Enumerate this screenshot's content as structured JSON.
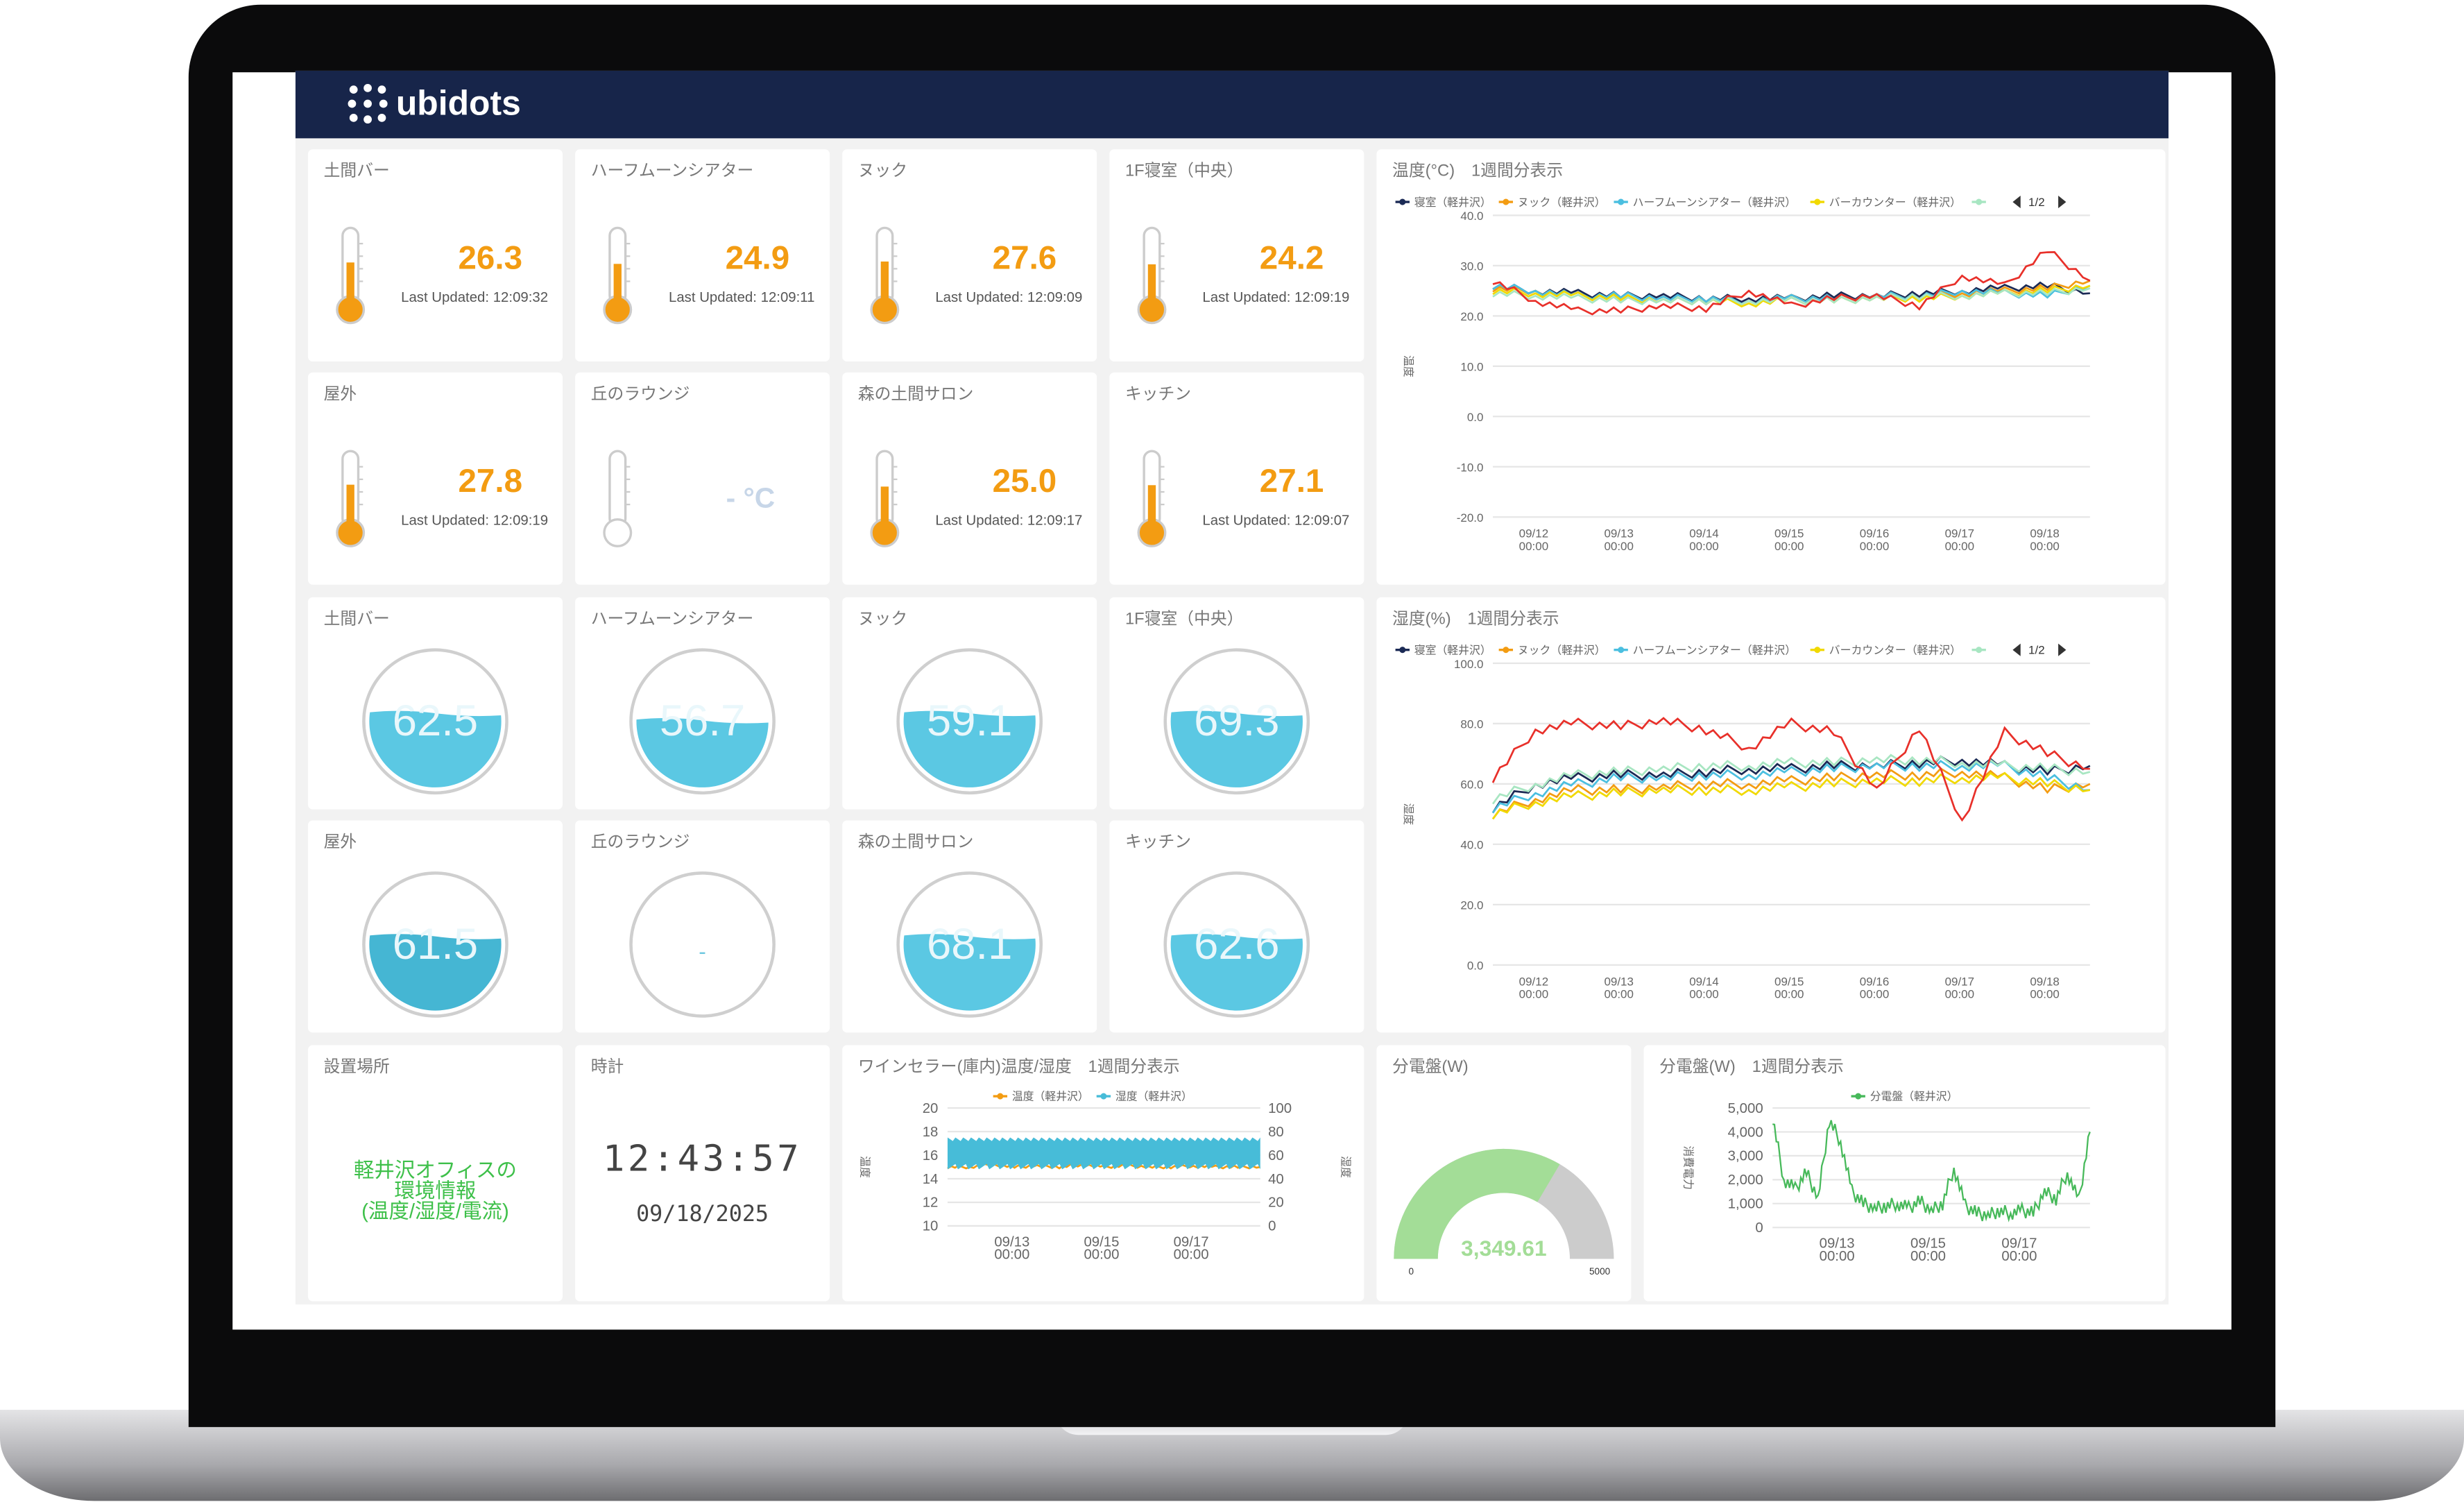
{
  "app": {
    "brand": "ubidots"
  },
  "temperature_tiles": [
    {
      "label": "土間バー",
      "value": "26.3",
      "updated": "Last Updated: 12:09:32",
      "level": 0.6
    },
    {
      "label": "ハーフムーンシアター",
      "value": "24.9",
      "updated": "Last Updated: 12:09:11",
      "level": 0.57
    },
    {
      "label": "ヌック",
      "value": "27.6",
      "updated": "Last Updated: 12:09:09",
      "level": 0.62
    },
    {
      "label": "1F寝室（中央）",
      "value": "24.2",
      "updated": "Last Updated: 12:09:19",
      "level": 0.56
    },
    {
      "label": "屋外",
      "value": "27.8",
      "updated": "Last Updated: 12:09:19",
      "level": 0.62
    },
    {
      "label": "丘のラウンジ",
      "value": "- °C",
      "updated": "",
      "level": 0
    },
    {
      "label": "森の土間サロン",
      "value": "25.0",
      "updated": "Last Updated: 12:09:17",
      "level": 0.58
    },
    {
      "label": "キッチン",
      "value": "27.1",
      "updated": "Last Updated: 12:09:07",
      "level": 0.61
    }
  ],
  "humidity_tiles": [
    {
      "label": "土間バー",
      "value": "62.5",
      "level": 0.6
    },
    {
      "label": "ハーフムーンシアター",
      "value": "56.7",
      "level": 0.55
    },
    {
      "label": "ヌック",
      "value": "59.1",
      "level": 0.6
    },
    {
      "label": "1F寝室（中央）",
      "value": "69.3",
      "level": 0.6
    },
    {
      "label": "屋外",
      "value": "61.5",
      "level": 0.6
    },
    {
      "label": "丘のラウンジ",
      "value": "-",
      "level": 0
    },
    {
      "label": "森の土間サロン",
      "value": "68.1",
      "level": 0.6
    },
    {
      "label": "キッチン",
      "value": "62.6",
      "level": 0.6
    }
  ],
  "location": {
    "label": "設置場所",
    "text": [
      "軽井沢オフィスの",
      "環境情報",
      "(温度/湿度/電流)"
    ]
  },
  "clock": {
    "label": "時計",
    "time": "12:43:57",
    "date": "09/18/2025"
  },
  "colors": {
    "header": "#17254a",
    "temp": "#f39c12",
    "water": "#5bc8e3",
    "green": "#a3dd97",
    "gray": "#cccccc"
  },
  "chart_data": [
    {
      "id": "temp",
      "type": "line",
      "title": "温度(°C)　1週間分表示",
      "ylabel": "温度",
      "ylim": [
        -20,
        40
      ],
      "yticks": [
        "40.0",
        "30.0",
        "20.0",
        "10.0",
        "0.0",
        "-10.0",
        "-20.0"
      ],
      "xticks": [
        [
          "09/12",
          "00:00"
        ],
        [
          "09/13",
          "00:00"
        ],
        [
          "09/14",
          "00:00"
        ],
        [
          "09/15",
          "00:00"
        ],
        [
          "09/16",
          "00:00"
        ],
        [
          "09/17",
          "00:00"
        ],
        [
          "09/18",
          "00:00"
        ]
      ],
      "legend_page": "1/2",
      "legend": "top",
      "series": [
        {
          "name": "寝室（軽井沢）",
          "color": "#1b2a55",
          "values": [
            26,
            25,
            24.5,
            24,
            24,
            23.5,
            23.5,
            23.5,
            24,
            24,
            24.5,
            25,
            25.5,
            26,
            24.5
          ]
        },
        {
          "name": "ヌック（軽井沢）",
          "color": "#f39c12",
          "values": [
            25.5,
            25,
            24,
            23.5,
            23,
            23,
            23,
            23.5,
            23.5,
            24,
            24,
            24.5,
            25,
            25.5,
            27
          ]
        },
        {
          "name": "ハーフムーンシアター（軽井沢）",
          "color": "#4bbfe0",
          "values": [
            26,
            25,
            24,
            24,
            23.5,
            23.5,
            23,
            23.5,
            23.5,
            24,
            24,
            25,
            24.5,
            24,
            26
          ]
        },
        {
          "name": "バーカウンター（軽井沢）",
          "color": "#f1d900",
          "values": [
            25,
            24.5,
            24,
            23.5,
            23,
            23,
            22.5,
            23,
            23,
            23.5,
            23.5,
            24,
            24.5,
            25,
            26
          ]
        },
        {
          "name": "",
          "color": "#a8e6c2",
          "values": [
            24.5,
            24,
            23.5,
            23,
            23,
            23,
            23,
            23,
            23,
            23.5,
            24,
            24,
            24.5,
            24.5,
            25.5
          ]
        },
        {
          "color": "#e8302a",
          "values": [
            27,
            23,
            21,
            21,
            22,
            21.5,
            25,
            22,
            23.5,
            24,
            22,
            28,
            26,
            33,
            27
          ]
        }
      ]
    },
    {
      "id": "hum",
      "type": "line",
      "title": "湿度(%)　1週間分表示",
      "ylabel": "湿度",
      "ylim": [
        0,
        100
      ],
      "yticks": [
        "100.0",
        "80.0",
        "60.0",
        "40.0",
        "20.0",
        "0.0"
      ],
      "xticks": [
        [
          "09/12",
          "00:00"
        ],
        [
          "09/13",
          "00:00"
        ],
        [
          "09/14",
          "00:00"
        ],
        [
          "09/15",
          "00:00"
        ],
        [
          "09/16",
          "00:00"
        ],
        [
          "09/17",
          "00:00"
        ],
        [
          "09/18",
          "00:00"
        ]
      ],
      "legend_page": "1/2",
      "legend": "top",
      "series": [
        {
          "name": "寝室（軽井沢）",
          "color": "#1b2a55",
          "values": [
            52,
            60,
            62,
            63,
            63,
            64,
            65,
            65,
            66,
            66,
            67,
            68,
            66,
            64,
            66
          ]
        },
        {
          "name": "ヌック（軽井沢）",
          "color": "#f39c12",
          "values": [
            50,
            55,
            58,
            58,
            59,
            60,
            60,
            61,
            62,
            63,
            63,
            64,
            62,
            58,
            60
          ]
        },
        {
          "name": "ハーフムーンシアター（軽井沢）",
          "color": "#4bbfe0",
          "values": [
            52,
            57,
            60,
            62,
            62,
            63,
            63,
            64,
            65,
            66,
            66,
            66,
            66,
            62,
            58
          ]
        },
        {
          "name": "バーカウンター（軽井沢）",
          "color": "#f1d900",
          "values": [
            50,
            54,
            56,
            57,
            58,
            58,
            58,
            59,
            60,
            61,
            61,
            62,
            62,
            60,
            58
          ]
        },
        {
          "name": "",
          "color": "#a8e6c2",
          "values": [
            55,
            60,
            63,
            64,
            65,
            66,
            66,
            67,
            67,
            68,
            68,
            67,
            66,
            65,
            64
          ]
        },
        {
          "color": "#e8302a",
          "values": [
            62,
            78,
            80,
            79,
            81,
            78,
            72,
            80,
            77,
            58,
            79,
            48,
            77,
            70,
            65
          ]
        }
      ]
    },
    {
      "id": "wine",
      "type": "line",
      "title": "ワインセラー(庫内)温度/湿度　1週間分表示",
      "ylabel": "温度",
      "y2label": "湿度",
      "ylim": [
        10,
        20
      ],
      "y2lim": [
        0,
        100
      ],
      "yticks": [
        "20",
        "18",
        "16",
        "14",
        "12",
        "10"
      ],
      "y2ticks": [
        "100",
        "80",
        "60",
        "40",
        "20",
        "0"
      ],
      "xticks": [
        [
          "09/13",
          "00:00"
        ],
        [
          "09/15",
          "00:00"
        ],
        [
          "09/17",
          "00:00"
        ]
      ],
      "legend": "top",
      "series": [
        {
          "name": "温度（軽井沢）",
          "color": "#f39c12",
          "values": [
            15,
            15,
            15.2,
            15,
            15.1,
            15,
            15.2,
            15,
            15.1,
            15,
            15,
            15.1,
            15,
            15,
            15
          ]
        },
        {
          "name": "湿度（軽井沢）",
          "color": "#47bcd8",
          "axis": "right",
          "range_min": 48,
          "range_max": 75
        }
      ]
    },
    {
      "id": "gauge",
      "type": "gauge",
      "title": "分電盤(W)",
      "value": 3349.61,
      "value_label": "3,349.61",
      "min": 0,
      "max": 5000,
      "min_label": "0",
      "max_label": "5000"
    },
    {
      "id": "power",
      "type": "line",
      "title": "分電盤(W)　1週間分表示",
      "ylabel": "消費電力",
      "ylim": [
        0,
        5000
      ],
      "yticks": [
        "5,000",
        "4,000",
        "3,000",
        "2,000",
        "1,000",
        "0"
      ],
      "xticks": [
        [
          "09/13",
          "00:00"
        ],
        [
          "09/15",
          "00:00"
        ],
        [
          "09/17",
          "00:00"
        ]
      ],
      "legend": "top",
      "series": [
        {
          "name": "分電盤（軽井沢）",
          "color": "#47b95a",
          "values": [
            4600,
            2000,
            1600,
            2300,
            1200,
            4500,
            3600,
            1500,
            1000,
            800,
            900,
            1000,
            800,
            1100,
            700,
            1000,
            2500,
            900,
            600,
            500,
            700,
            600,
            700,
            600,
            1500,
            1200,
            2300,
            1100,
            4000
          ]
        }
      ]
    }
  ]
}
